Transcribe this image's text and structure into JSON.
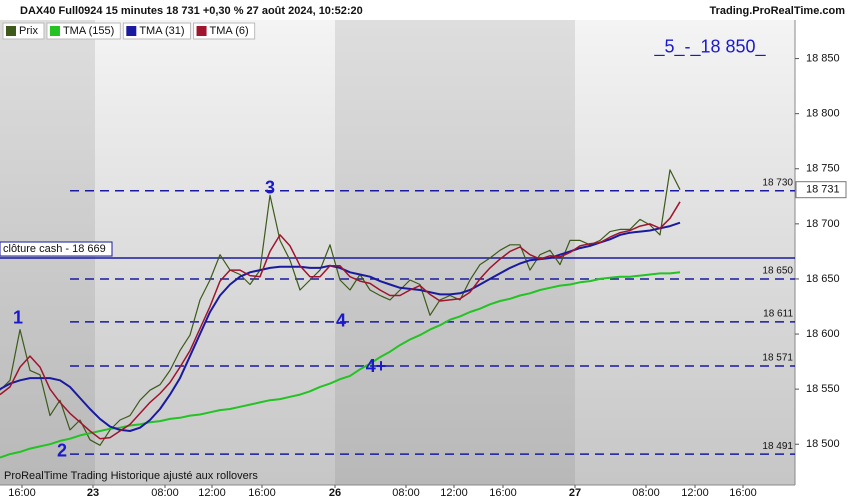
{
  "header": {
    "title": "DAX40 Full0924 15 minutes 18 731 +0,30 % 27 août 2024, 10:52:20",
    "site": "Trading.ProRealTime.com",
    "footer": "ProRealTime Trading  Historique ajusté aux rollovers"
  },
  "chart_data": {
    "type": "line",
    "x": [
      0,
      1,
      2,
      3,
      4,
      5,
      6,
      7,
      8,
      9,
      10,
      11,
      12,
      13,
      14,
      15,
      16,
      17,
      18,
      19,
      20,
      21,
      22,
      23,
      24,
      25,
      26,
      27,
      28,
      29,
      30,
      31,
      32,
      33,
      34,
      35,
      36,
      37,
      38,
      39,
      40,
      41,
      42,
      43,
      44,
      45,
      46,
      47,
      48,
      49,
      50,
      51,
      52,
      53,
      54,
      55,
      56,
      57,
      58,
      59,
      60,
      61,
      62,
      63,
      64,
      65,
      66,
      67,
      68
    ],
    "series": [
      {
        "name": "Prix",
        "color": "#3d5a1a",
        "width": 1.2,
        "values": [
          18549,
          18558,
          18604,
          18567,
          18563,
          18526,
          18540,
          18513,
          18522,
          18504,
          18499,
          18513,
          18522,
          18526,
          18540,
          18549,
          18554,
          18567,
          18585,
          18599,
          18631,
          18649,
          18672,
          18658,
          18654,
          18645,
          18658,
          18726,
          18685,
          18667,
          18640,
          18649,
          18658,
          18681,
          18649,
          18640,
          18654,
          18640,
          18635,
          18631,
          18640,
          18649,
          18645,
          18617,
          18631,
          18635,
          18631,
          18649,
          18663,
          18669,
          18676,
          18681,
          18681,
          18658,
          18672,
          18676,
          18663,
          18685,
          18685,
          18681,
          18685,
          18693,
          18695,
          18695,
          18704,
          18699,
          18690,
          18749,
          18731
        ]
      },
      {
        "name": "TMA (155)",
        "color": "#22c322",
        "width": 2,
        "values": [
          18488,
          18491,
          18493,
          18496,
          18498,
          18500,
          18503,
          18505,
          18508,
          18510,
          18512,
          18514,
          18515,
          18517,
          18518,
          18520,
          18521,
          18523,
          18524,
          18526,
          18527,
          18529,
          18531,
          18532,
          18534,
          18536,
          18538,
          18540,
          18541,
          18543,
          18545,
          18548,
          18552,
          18555,
          18559,
          18562,
          18568,
          18573,
          18579,
          18584,
          18590,
          18595,
          18599,
          18604,
          18608,
          18613,
          18616,
          18620,
          18623,
          18627,
          18630,
          18632,
          18635,
          18637,
          18640,
          18642,
          18644,
          18645,
          18647,
          18648,
          18650,
          18651,
          18652,
          18652,
          18653,
          18654,
          18655,
          18655,
          18656
        ]
      },
      {
        "name": "TMA (31)",
        "color": "#1a1aa0",
        "width": 2,
        "values": [
          18550,
          18555,
          18558,
          18560,
          18560,
          18560,
          18558,
          18552,
          18542,
          18532,
          18523,
          18516,
          18513,
          18512,
          18515,
          18522,
          18532,
          18545,
          18560,
          18580,
          18600,
          18620,
          18635,
          18645,
          18652,
          18656,
          18658,
          18660,
          18661,
          18661,
          18661,
          18660,
          18660,
          18662,
          18660,
          18656,
          18654,
          18652,
          18648,
          18645,
          18642,
          18641,
          18640,
          18638,
          18636,
          18636,
          18637,
          18640,
          18645,
          18650,
          18655,
          18660,
          18664,
          18667,
          18668,
          18669,
          18672,
          18675,
          18678,
          18680,
          18683,
          18686,
          18690,
          18692,
          18693,
          18694,
          18696,
          18698,
          18701
        ]
      },
      {
        "name": "TMA (6)",
        "color": "#a0142d",
        "width": 1.5,
        "values": [
          18545,
          18552,
          18570,
          18580,
          18570,
          18550,
          18538,
          18528,
          18520,
          18512,
          18505,
          18506,
          18512,
          18518,
          18528,
          18538,
          18546,
          18556,
          18570,
          18585,
          18605,
          18625,
          18648,
          18658,
          18658,
          18653,
          18652,
          18675,
          18690,
          18680,
          18662,
          18652,
          18652,
          18662,
          18662,
          18652,
          18648,
          18646,
          18640,
          18635,
          18635,
          18640,
          18644,
          18636,
          18630,
          18631,
          18632,
          18638,
          18650,
          18660,
          18668,
          18675,
          18679,
          18672,
          18668,
          18671,
          18670,
          18674,
          18680,
          18682,
          18683,
          18688,
          18692,
          18694,
          18698,
          18700,
          18696,
          18705,
          18720
        ]
      }
    ],
    "xlim": [
      0,
      79.5
    ],
    "xticks": [
      {
        "value": 2.2,
        "label": "16:00"
      },
      {
        "value": 9.3,
        "label": "23"
      },
      {
        "value": 16.5,
        "label": "08:00"
      },
      {
        "value": 21.2,
        "label": "12:00"
      },
      {
        "value": 26.2,
        "label": "16:00"
      },
      {
        "value": 33.5,
        "label": "26"
      },
      {
        "value": 40.6,
        "label": "08:00"
      },
      {
        "value": 45.4,
        "label": "12:00"
      },
      {
        "value": 50.3,
        "label": "16:00"
      },
      {
        "value": 57.5,
        "label": "27"
      },
      {
        "value": 64.6,
        "label": "08:00"
      },
      {
        "value": 69.5,
        "label": "12:00"
      },
      {
        "value": 74.3,
        "label": "16:00"
      }
    ],
    "ylim": [
      18463,
      18885
    ],
    "yticks": [
      {
        "value": 18500,
        "label": "18 500"
      },
      {
        "value": 18550,
        "label": "18 550"
      },
      {
        "value": 18600,
        "label": "18 600"
      },
      {
        "value": 18650,
        "label": "18 650"
      },
      {
        "value": 18700,
        "label": "18 700"
      },
      {
        "value": 18750,
        "label": "18 750"
      },
      {
        "value": 18800,
        "label": "18 800"
      },
      {
        "value": 18850,
        "label": "18 850"
      }
    ],
    "levels": [
      {
        "value": 18730,
        "label": "18 730"
      },
      {
        "value": 18650,
        "label": "18 650"
      },
      {
        "value": 18611,
        "label": "18 611"
      },
      {
        "value": 18571,
        "label": "18 571"
      },
      {
        "value": 18491,
        "label": "18 491"
      }
    ],
    "level_color": "#1a1aa0",
    "cash_close": {
      "value": 18669,
      "label": "clôture cash -  18 669"
    },
    "last_price": {
      "value": 18731,
      "label": "18 731"
    },
    "annotations": [
      {
        "text": "1",
        "x": 1.8,
        "y": 18614
      },
      {
        "text": "2",
        "x": 6.2,
        "y": 18493
      },
      {
        "text": "3",
        "x": 27,
        "y": 18732
      },
      {
        "text": "4",
        "x": 34.1,
        "y": 18611
      },
      {
        "text": "4+",
        "x": 37.6,
        "y": 18570
      },
      {
        "text": "_5_-_18 850_",
        "x": 71,
        "y": 18860
      }
    ]
  }
}
